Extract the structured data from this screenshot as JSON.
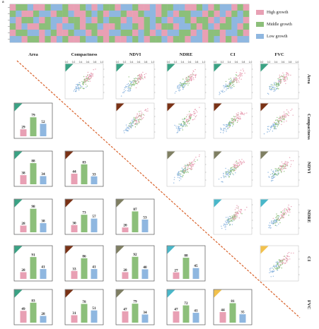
{
  "panel_a_label": "a",
  "variables": [
    "Area",
    "Compactness",
    "NDVI",
    "NDRE",
    "CI",
    "FVC"
  ],
  "legend": [
    {
      "label": "High growth",
      "color": "#e8a0b4"
    },
    {
      "label": "Middle growth",
      "color": "#8cbf7a"
    },
    {
      "label": "Low growth",
      "color": "#8fb7e0"
    }
  ],
  "tick_labels": [
    "0.0",
    "0.2",
    "0.4",
    "0.6",
    "0.8",
    "1.0"
  ],
  "var_colors": [
    "#3aa284",
    "#7a3216",
    "#7f7f62",
    "#49b7c9",
    "#f2c14c",
    "#c8392b"
  ],
  "heatmap_pattern": [
    "HMMLHHMLLMHHMLHLMMHLLMHHLHMMLLHHMLHMLLHMH",
    "MLHHMLLHMMLHHMLMHLLMHHMLLHMLHMMLLHMHLHMLM",
    "LHMMLHMLLHMMHLHMLMMHLHHMLMLHLLMHMMHLHMLLH",
    "MHLHHMMLHLLMHMMLHHMLLMHMLHMMHLLMHMLHMMLHM",
    "HMMLLHLMHHMLLHMHHLLMMHLMHLHLLMMHLHMMHLLMH",
    "LLHMMHMHLMHHMLLMHMHHLMLHMMLHMMHLLHMLHMHLL"
  ],
  "bar_values": [
    [
      null,
      null,
      null,
      null,
      null,
      null
    ],
    [
      [
        29,
        79,
        52
      ],
      null,
      null,
      null,
      null,
      null
    ],
    [
      [
        38,
        88,
        34
      ],
      [
        44,
        83,
        33
      ],
      null,
      null,
      null,
      null
    ],
    [
      [
        28,
        98,
        38
      ],
      [
        30,
        73,
        57
      ],
      [
        20,
        87,
        53
      ],
      null,
      null,
      null
    ],
    [
      [
        28,
        91,
        41
      ],
      [
        33,
        86,
        41
      ],
      [
        28,
        92,
        40
      ],
      [
        27,
        88,
        45
      ],
      null,
      null
    ],
    [
      [
        49,
        83,
        28
      ],
      [
        31,
        78,
        51
      ],
      [
        47,
        79,
        34
      ],
      [
        47,
        72,
        41
      ],
      [
        44,
        81,
        35
      ],
      null
    ]
  ]
}
